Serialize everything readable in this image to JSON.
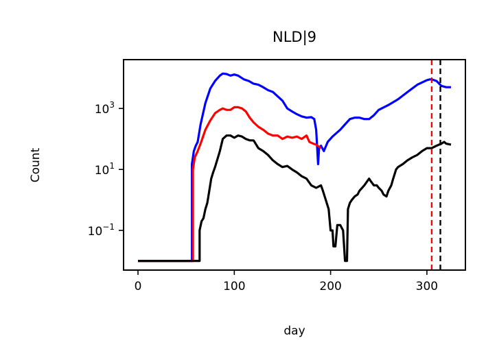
{
  "chart_data": {
    "type": "line",
    "title": "NLD|9",
    "xlabel": "day",
    "ylabel": "Count",
    "yscale": "log",
    "xlim": [
      -15,
      340
    ],
    "ylim": [
      0.005,
      40000
    ],
    "xticks": [
      {
        "value": 0,
        "label": "0"
      },
      {
        "value": 100,
        "label": "100"
      },
      {
        "value": 200,
        "label": "200"
      },
      {
        "value": 300,
        "label": "300"
      }
    ],
    "yticks": [
      {
        "value": 0.1,
        "base": "10",
        "exp": "−1"
      },
      {
        "value": 10,
        "base": "10",
        "exp": "1"
      },
      {
        "value": 1000,
        "base": "10",
        "exp": "3"
      }
    ],
    "grid": false,
    "series": [
      {
        "color": "#0000ff",
        "points": [
          [
            0,
            0.01
          ],
          [
            56,
            0.01
          ],
          [
            56,
            15
          ],
          [
            58,
            40
          ],
          [
            60,
            60
          ],
          [
            62,
            80
          ],
          [
            65,
            300
          ],
          [
            70,
            1500
          ],
          [
            75,
            4500
          ],
          [
            80,
            8000
          ],
          [
            85,
            12000
          ],
          [
            88,
            14000
          ],
          [
            92,
            13500
          ],
          [
            96,
            12000
          ],
          [
            100,
            13000
          ],
          [
            104,
            12000
          ],
          [
            110,
            9000
          ],
          [
            115,
            8000
          ],
          [
            120,
            6500
          ],
          [
            125,
            6000
          ],
          [
            130,
            5000
          ],
          [
            135,
            4000
          ],
          [
            140,
            3500
          ],
          [
            145,
            2500
          ],
          [
            150,
            1800
          ],
          [
            155,
            1000
          ],
          [
            160,
            800
          ],
          [
            165,
            650
          ],
          [
            170,
            550
          ],
          [
            175,
            500
          ],
          [
            180,
            520
          ],
          [
            183,
            450
          ],
          [
            185,
            200
          ],
          [
            187,
            15
          ],
          [
            188,
            50
          ],
          [
            190,
            60
          ],
          [
            193,
            40
          ],
          [
            197,
            80
          ],
          [
            202,
            120
          ],
          [
            210,
            200
          ],
          [
            215,
            300
          ],
          [
            220,
            450
          ],
          [
            225,
            500
          ],
          [
            230,
            500
          ],
          [
            235,
            450
          ],
          [
            240,
            450
          ],
          [
            245,
            600
          ],
          [
            250,
            900
          ],
          [
            260,
            1300
          ],
          [
            270,
            2000
          ],
          [
            280,
            3500
          ],
          [
            290,
            6000
          ],
          [
            300,
            8500
          ],
          [
            303,
            9000
          ],
          [
            305,
            9000
          ],
          [
            310,
            8000
          ],
          [
            315,
            5500
          ],
          [
            320,
            5000
          ],
          [
            325,
            5000
          ]
        ]
      },
      {
        "color": "#ff0000",
        "points": [
          [
            0,
            0.01
          ],
          [
            57,
            0.01
          ],
          [
            57,
            10
          ],
          [
            59,
            25
          ],
          [
            62,
            40
          ],
          [
            65,
            70
          ],
          [
            70,
            200
          ],
          [
            75,
            400
          ],
          [
            80,
            700
          ],
          [
            85,
            900
          ],
          [
            88,
            1000
          ],
          [
            92,
            900
          ],
          [
            96,
            900
          ],
          [
            100,
            1100
          ],
          [
            104,
            1100
          ],
          [
            108,
            1000
          ],
          [
            112,
            800
          ],
          [
            116,
            500
          ],
          [
            120,
            350
          ],
          [
            125,
            250
          ],
          [
            130,
            200
          ],
          [
            135,
            150
          ],
          [
            140,
            130
          ],
          [
            145,
            130
          ],
          [
            150,
            100
          ],
          [
            155,
            120
          ],
          [
            160,
            110
          ],
          [
            165,
            120
          ],
          [
            170,
            100
          ],
          [
            175,
            130
          ],
          [
            178,
            80
          ],
          [
            180,
            75
          ],
          [
            182,
            70
          ],
          [
            185,
            65
          ],
          [
            188,
            55
          ],
          [
            190,
            50
          ]
        ]
      },
      {
        "color": "#000000",
        "points": [
          [
            0,
            0.01
          ],
          [
            64,
            0.01
          ],
          [
            64,
            0.1
          ],
          [
            66,
            0.2
          ],
          [
            68,
            0.25
          ],
          [
            70,
            0.5
          ],
          [
            72,
            0.8
          ],
          [
            74,
            2
          ],
          [
            76,
            5
          ],
          [
            78,
            8
          ],
          [
            80,
            12
          ],
          [
            85,
            40
          ],
          [
            88,
            100
          ],
          [
            92,
            130
          ],
          [
            96,
            130
          ],
          [
            100,
            110
          ],
          [
            104,
            130
          ],
          [
            108,
            120
          ],
          [
            112,
            100
          ],
          [
            116,
            90
          ],
          [
            120,
            90
          ],
          [
            125,
            50
          ],
          [
            130,
            40
          ],
          [
            135,
            30
          ],
          [
            140,
            20
          ],
          [
            145,
            15
          ],
          [
            150,
            12
          ],
          [
            155,
            13
          ],
          [
            160,
            10
          ],
          [
            165,
            8
          ],
          [
            170,
            6
          ],
          [
            175,
            5
          ],
          [
            180,
            3
          ],
          [
            185,
            2.5
          ],
          [
            190,
            3
          ],
          [
            192,
            2
          ],
          [
            195,
            1
          ],
          [
            198,
            0.5
          ],
          [
            200,
            0.1
          ],
          [
            202,
            0.1
          ],
          [
            203,
            0.03
          ],
          [
            205,
            0.03
          ],
          [
            207,
            0.15
          ],
          [
            210,
            0.15
          ],
          [
            213,
            0.1
          ],
          [
            215,
            0.01
          ],
          [
            217,
            0.01
          ],
          [
            218,
            0.5
          ],
          [
            220,
            0.8
          ],
          [
            222,
            1
          ],
          [
            225,
            1.3
          ],
          [
            228,
            1.5
          ],
          [
            230,
            2
          ],
          [
            235,
            3
          ],
          [
            240,
            5
          ],
          [
            242,
            4
          ],
          [
            245,
            3
          ],
          [
            248,
            3
          ],
          [
            250,
            2.5
          ],
          [
            253,
            2
          ],
          [
            255,
            1.5
          ],
          [
            258,
            1.3
          ],
          [
            260,
            2
          ],
          [
            263,
            3
          ],
          [
            265,
            5
          ],
          [
            268,
            10
          ],
          [
            270,
            12
          ],
          [
            275,
            15
          ],
          [
            280,
            20
          ],
          [
            285,
            25
          ],
          [
            290,
            30
          ],
          [
            295,
            40
          ],
          [
            300,
            50
          ],
          [
            305,
            50
          ],
          [
            310,
            60
          ],
          [
            315,
            70
          ],
          [
            318,
            80
          ],
          [
            320,
            70
          ],
          [
            325,
            65
          ]
        ]
      }
    ],
    "vlines": [
      {
        "x": 305,
        "color": "#ff0000",
        "style": "dashed"
      },
      {
        "x": 314,
        "color": "#000000",
        "style": "dashed"
      }
    ]
  }
}
